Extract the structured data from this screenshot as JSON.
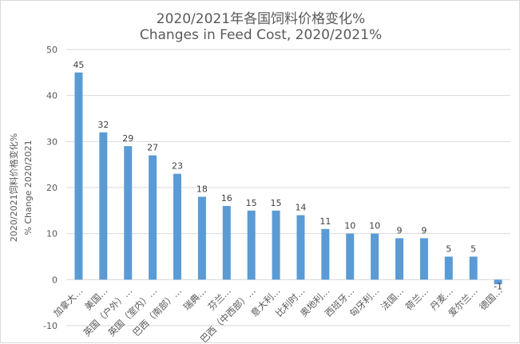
{
  "chart_data": {
    "type": "bar",
    "title": "2020/2021年各国饲料价格变化%",
    "subtitle": "Changes in Feed Cost, 2020/2021%",
    "ylabel_cn": "2020/2021饲料价格变化%",
    "ylabel_en": "% Change 2020/2021",
    "ylim": [
      -10,
      50
    ],
    "yticks": [
      -10,
      0,
      10,
      20,
      30,
      40,
      50
    ],
    "grid": true,
    "legend": "none",
    "bar_color": "#5b9bd5",
    "categories": [
      "加拿大…",
      "美国…",
      "英国（户外）…",
      "英国（室内）…",
      "巴西（南部）…",
      "瑞典…",
      "芬兰…",
      "巴西（中西部）…",
      "意大利…",
      "比利时…",
      "奥地利…",
      "西班牙…",
      "匈牙利…",
      "法国…",
      "荷兰…",
      "丹麦…",
      "爱尔兰…",
      "德国…"
    ],
    "values": [
      45,
      32,
      29,
      27,
      23,
      18,
      16,
      15,
      15,
      14,
      11,
      10,
      10,
      9,
      9,
      5,
      5,
      -1
    ],
    "data_labels": [
      "45",
      "32",
      "29",
      "27",
      "23",
      "18",
      "16",
      "15",
      "15",
      "14",
      "11",
      "10",
      "10",
      "9",
      "9",
      "5",
      "5",
      "-1"
    ]
  }
}
